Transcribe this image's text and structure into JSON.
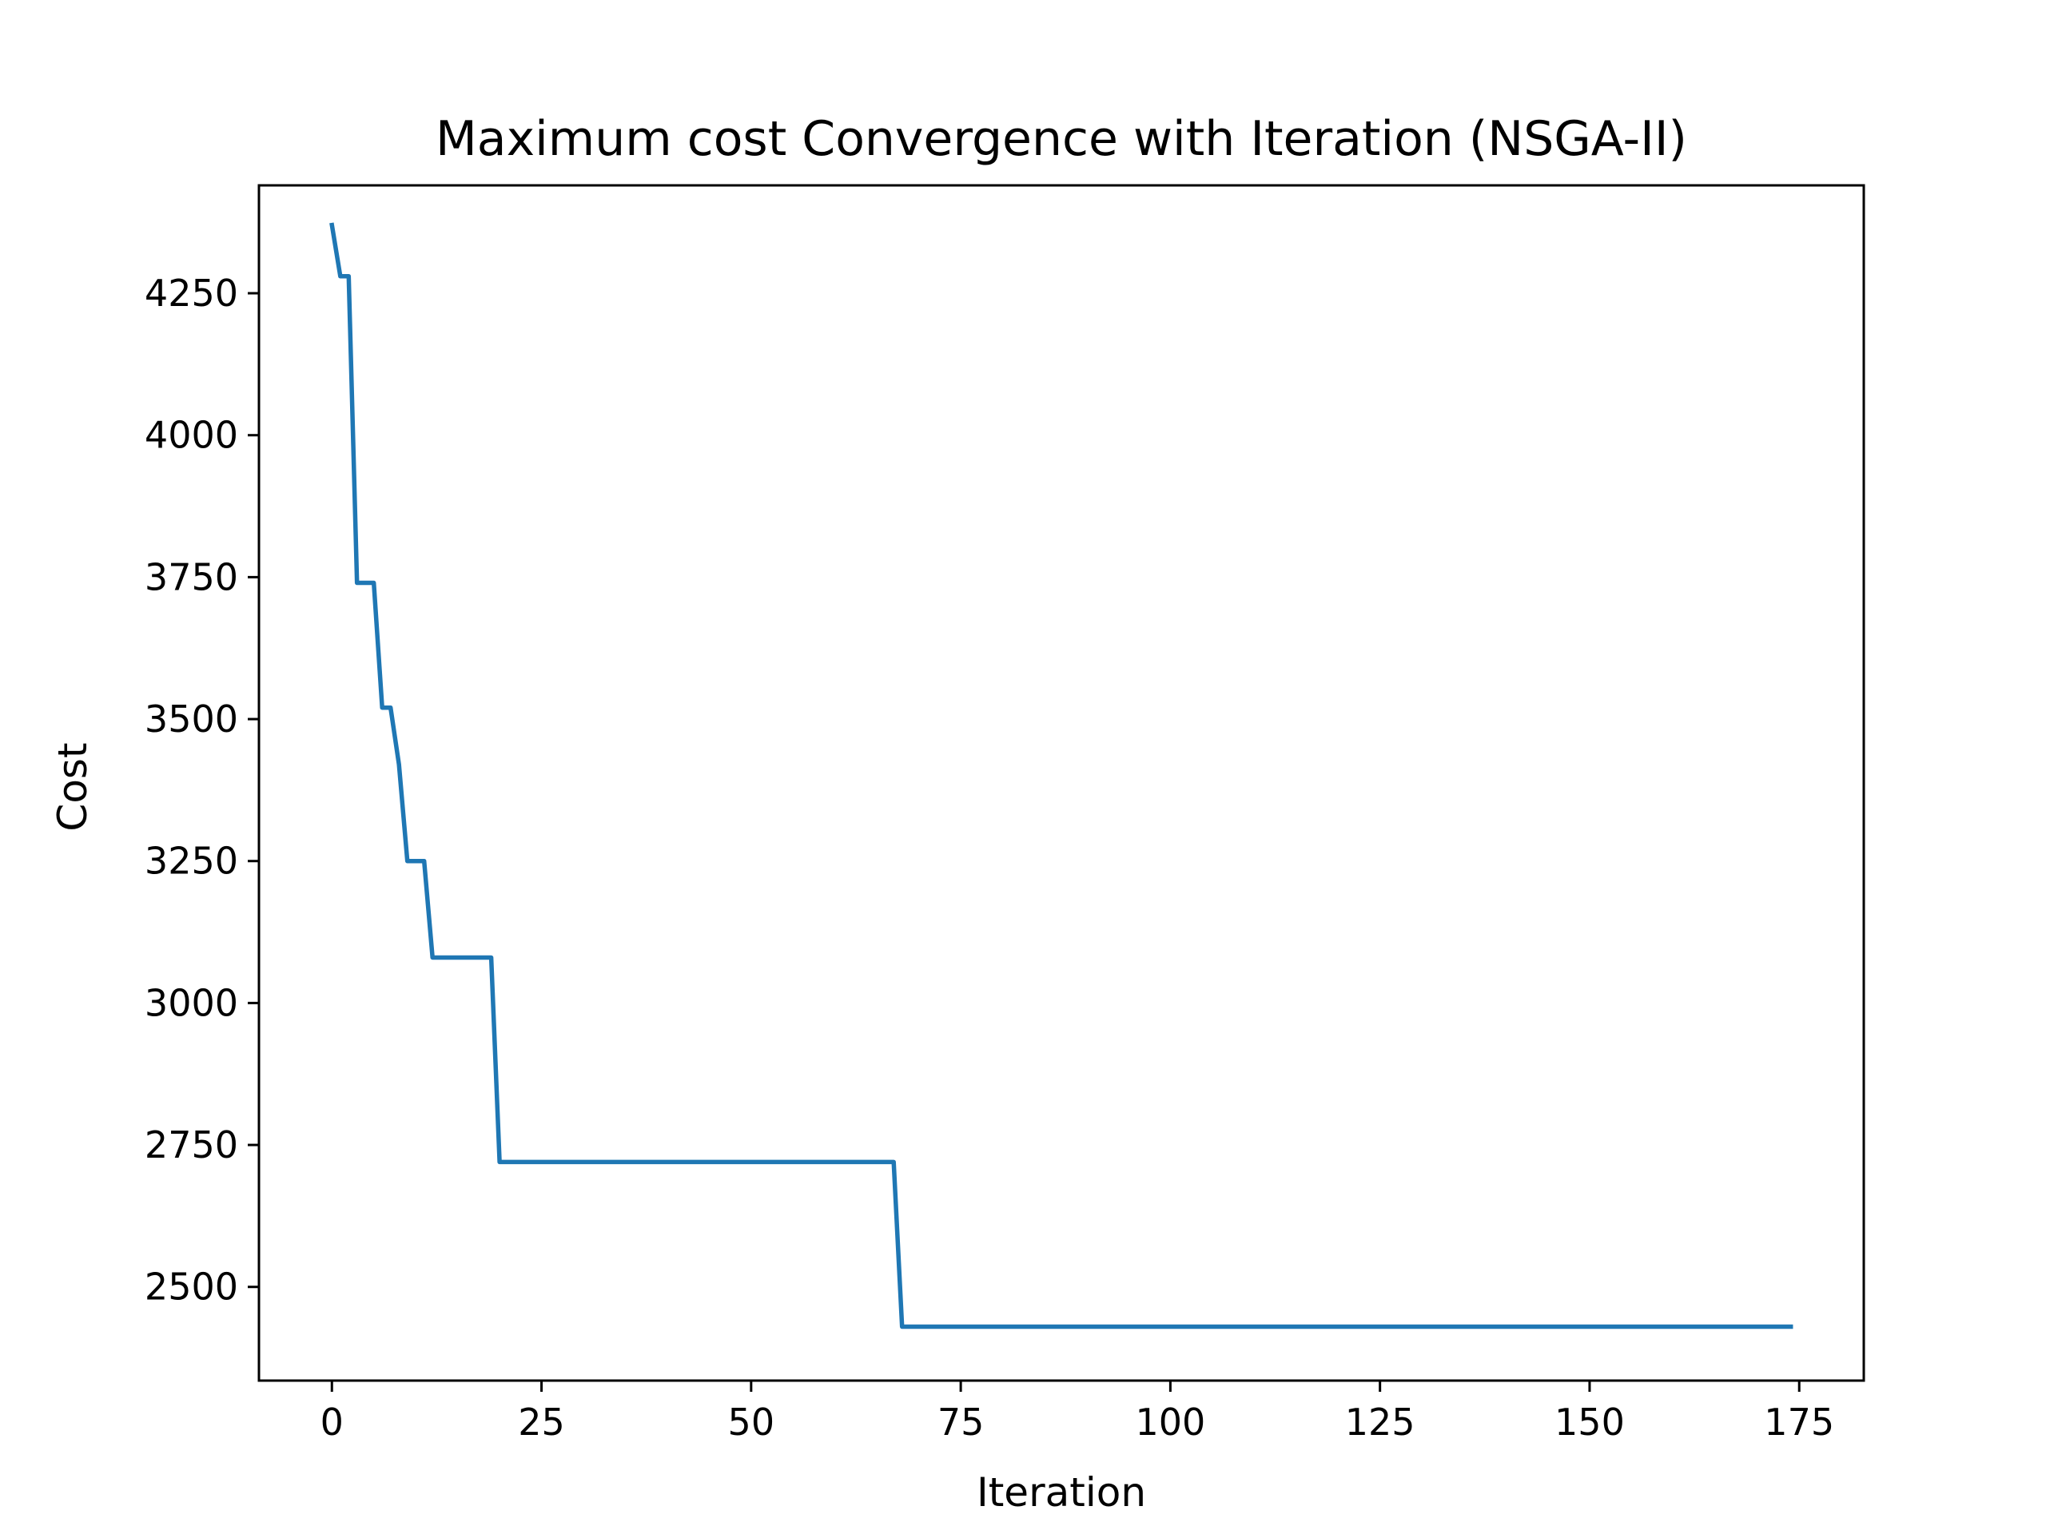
{
  "chart_data": {
    "type": "line",
    "title": "Maximum cost Convergence with Iteration (NSGA-II)",
    "xlabel": "Iteration",
    "ylabel": "Cost",
    "xlim": [
      -8.7,
      182.7
    ],
    "ylim": [
      2335,
      4440
    ],
    "xticks": [
      0,
      25,
      50,
      75,
      100,
      125,
      150,
      175
    ],
    "yticks": [
      2500,
      2750,
      3000,
      3250,
      3500,
      3750,
      4000,
      4250
    ],
    "grid": false,
    "series": [
      {
        "color": "#1f77b4",
        "x": [
          0,
          1,
          2,
          3,
          4,
          5,
          6,
          7,
          8,
          9,
          10,
          11,
          12,
          13,
          14,
          15,
          16,
          17,
          18,
          19,
          20,
          21,
          30,
          40,
          50,
          60,
          66,
          67,
          68,
          69,
          80,
          100,
          120,
          140,
          160,
          174
        ],
        "y": [
          4370,
          4280,
          4280,
          3740,
          3740,
          3740,
          3520,
          3520,
          3420,
          3250,
          3250,
          3250,
          3080,
          3080,
          3080,
          3080,
          3080,
          3080,
          3080,
          3080,
          2720,
          2720,
          2720,
          2720,
          2720,
          2720,
          2720,
          2720,
          2430,
          2430,
          2430,
          2430,
          2430,
          2430,
          2430,
          2430
        ]
      }
    ]
  }
}
